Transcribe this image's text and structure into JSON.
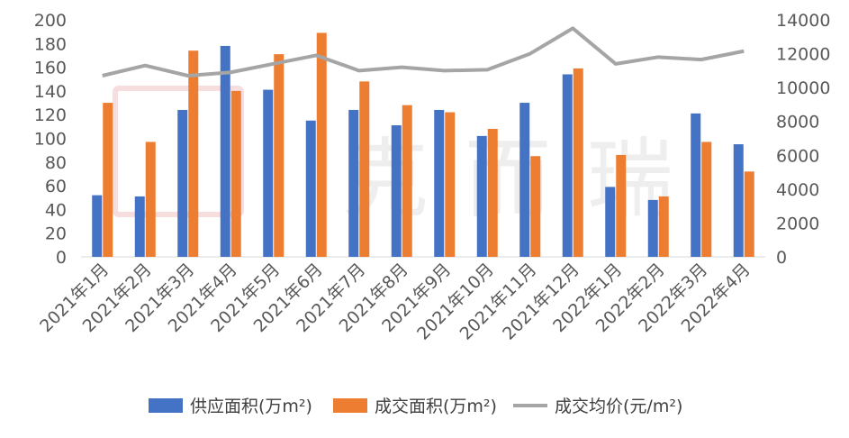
{
  "chart_data": {
    "type": "bar",
    "categories": [
      "2021年1月",
      "2021年2月",
      "2021年3月",
      "2021年4月",
      "2021年5月",
      "2021年6月",
      "2021年7月",
      "2021年8月",
      "2021年9月",
      "2021年10月",
      "2021年11月",
      "2021年12月",
      "2022年1月",
      "2022年2月",
      "2022年3月",
      "2022年4月"
    ],
    "series": [
      {
        "name": "供应面积(万m²)",
        "axis": "left",
        "kind": "bar",
        "color": "#4472C4",
        "values": [
          52,
          51,
          124,
          178,
          141,
          115,
          124,
          111,
          124,
          102,
          130,
          154,
          59,
          48,
          121,
          95
        ]
      },
      {
        "name": "成交面积(万m²)",
        "axis": "left",
        "kind": "bar",
        "color": "#ED7D31",
        "values": [
          130,
          97,
          174,
          140,
          171,
          189,
          148,
          128,
          122,
          108,
          85,
          159,
          86,
          51,
          97,
          72
        ]
      },
      {
        "name": "成交均价(元/m²)",
        "axis": "right",
        "kind": "line",
        "color": "#A5A5A5",
        "values": [
          10700,
          11300,
          10700,
          10900,
          11400,
          11900,
          11000,
          11200,
          11000,
          11050,
          12000,
          13500,
          11400,
          11800,
          11650,
          12150
        ]
      }
    ],
    "ylim": [
      0,
      200
    ],
    "y_ticks": [
      "0",
      "20",
      "40",
      "60",
      "80",
      "100",
      "120",
      "140",
      "160",
      "180",
      "200"
    ],
    "y2lim": [
      0,
      14000
    ],
    "y2_ticks": [
      "0",
      "2000",
      "4000",
      "6000",
      "8000",
      "10000",
      "12000",
      "14000"
    ],
    "grid": false,
    "legend": "bottom"
  },
  "watermark": {
    "text": "克而瑞"
  }
}
